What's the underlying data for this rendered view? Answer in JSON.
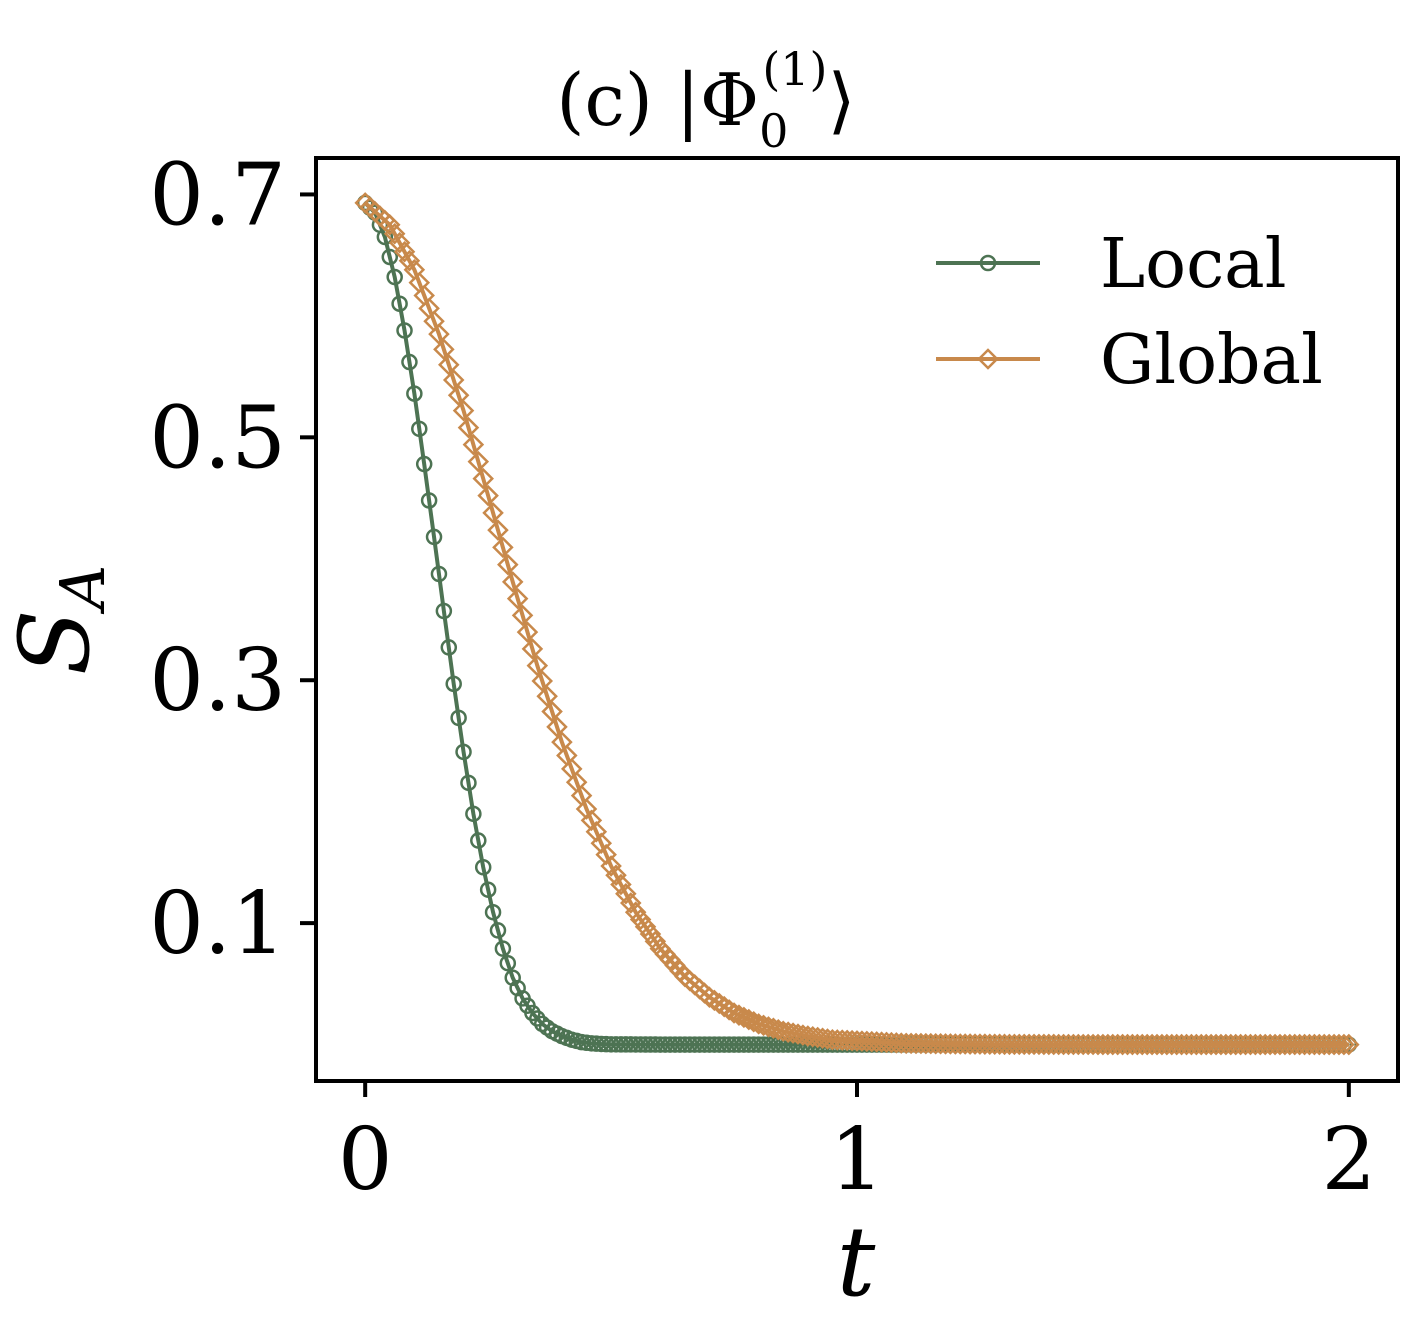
{
  "chart_data": {
    "type": "line",
    "title": {
      "prefix": "(c) |Φ",
      "subscript": "0",
      "superscript": "(1)",
      "suffix": "⟩"
    },
    "xlabel": "t",
    "ylabel": {
      "main": "S",
      "subscript": "A"
    },
    "xlim": [
      -0.1,
      2.1
    ],
    "ylim": [
      -0.03,
      0.73
    ],
    "xticks": [
      0,
      1,
      2
    ],
    "xtick_labels": [
      "0",
      "1",
      "2"
    ],
    "yticks": [
      0.1,
      0.3,
      0.5,
      0.7
    ],
    "ytick_labels": [
      "0.1",
      "0.3",
      "0.5",
      "0.7"
    ],
    "grid": false,
    "legend_position": "top-right",
    "series": [
      {
        "name": "Local",
        "color": "#4d7353",
        "marker": "circle",
        "x": [
          0,
          0.02,
          0.04,
          0.06,
          0.08,
          0.1,
          0.12,
          0.14,
          0.16,
          0.18,
          0.2,
          0.22,
          0.24,
          0.26,
          0.28,
          0.3,
          0.32,
          0.34,
          0.36,
          0.38,
          0.4,
          0.42,
          0.44,
          0.46,
          0.48,
          0.5,
          0.55,
          0.6,
          0.7,
          0.8,
          0.9,
          1.0,
          1.2,
          1.4,
          1.6,
          1.8,
          2.0
        ],
        "y": [
          0.693,
          0.685,
          0.665,
          0.632,
          0.588,
          0.536,
          0.478,
          0.418,
          0.357,
          0.297,
          0.241,
          0.19,
          0.146,
          0.109,
          0.079,
          0.055,
          0.038,
          0.026,
          0.017,
          0.011,
          0.007,
          0.004,
          0.002,
          0.001,
          0.0005,
          0.0002,
          0.0001,
          0,
          0,
          0,
          0,
          0,
          0,
          0,
          0,
          0,
          0
        ]
      },
      {
        "name": "Global",
        "color": "#c8894b",
        "marker": "diamond",
        "x": [
          0,
          0.05,
          0.1,
          0.15,
          0.2,
          0.25,
          0.3,
          0.35,
          0.4,
          0.45,
          0.5,
          0.55,
          0.6,
          0.65,
          0.7,
          0.75,
          0.8,
          0.85,
          0.9,
          0.95,
          1.0,
          1.1,
          1.2,
          1.3,
          1.4,
          1.5,
          1.6,
          1.7,
          1.8,
          1.9,
          2.0
        ],
        "y": [
          0.693,
          0.675,
          0.638,
          0.585,
          0.522,
          0.452,
          0.381,
          0.312,
          0.249,
          0.194,
          0.147,
          0.109,
          0.079,
          0.056,
          0.039,
          0.026,
          0.017,
          0.011,
          0.007,
          0.004,
          0.003,
          0.001,
          0.0005,
          0.0002,
          0.0001,
          0,
          0,
          0,
          0,
          0,
          0
        ]
      }
    ]
  }
}
